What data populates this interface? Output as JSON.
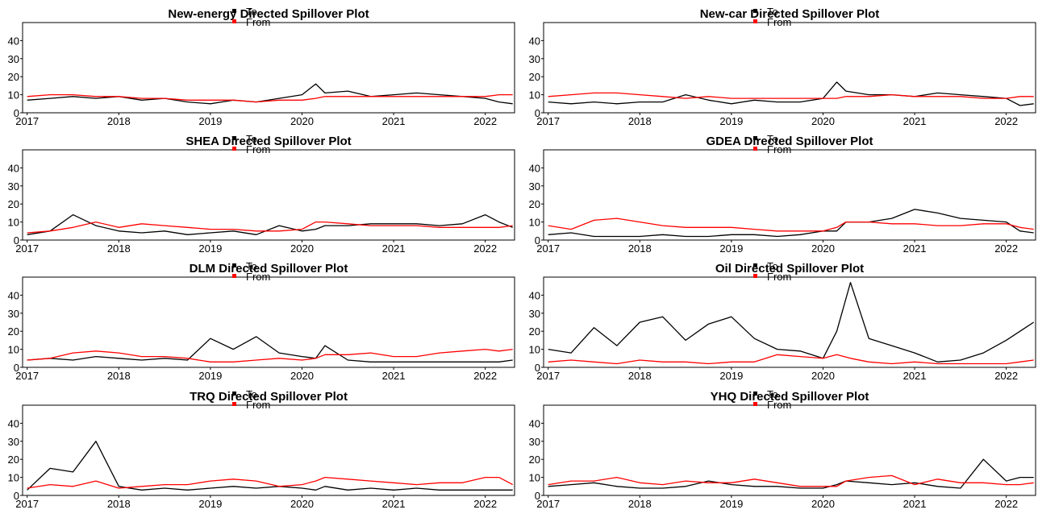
{
  "chart_data": [
    {
      "type": "line",
      "title": "New-energy Directed Spillover Plot",
      "x": [
        2017.0,
        2017.25,
        2017.5,
        2017.75,
        2018.0,
        2018.25,
        2018.5,
        2018.75,
        2019.0,
        2019.25,
        2019.5,
        2019.75,
        2020.0,
        2020.15,
        2020.25,
        2020.5,
        2020.75,
        2021.0,
        2021.25,
        2021.5,
        2021.75,
        2022.0,
        2022.15,
        2022.3
      ],
      "xticks": [
        2017,
        2018,
        2019,
        2020,
        2021,
        2022
      ],
      "yticks": [
        0,
        10,
        20,
        30,
        40
      ],
      "ylim": [
        0,
        50
      ],
      "series": [
        {
          "name": "To",
          "color": "#000000",
          "values": [
            7,
            8,
            9,
            8,
            9,
            7,
            8,
            6,
            5,
            7,
            6,
            8,
            10,
            16,
            11,
            12,
            9,
            10,
            11,
            10,
            9,
            8,
            6,
            5
          ]
        },
        {
          "name": "From",
          "color": "#ff0000",
          "values": [
            9,
            10,
            10,
            9,
            9,
            8,
            8,
            7,
            7,
            7,
            6,
            7,
            7,
            8,
            9,
            9,
            9,
            9,
            9,
            9,
            9,
            9,
            10,
            10
          ]
        }
      ]
    },
    {
      "type": "line",
      "title": "New-car Directed Spillover Plot",
      "x": [
        2017.0,
        2017.25,
        2017.5,
        2017.75,
        2018.0,
        2018.25,
        2018.5,
        2018.75,
        2019.0,
        2019.25,
        2019.5,
        2019.75,
        2020.0,
        2020.15,
        2020.25,
        2020.5,
        2020.75,
        2021.0,
        2021.25,
        2021.5,
        2021.75,
        2022.0,
        2022.15,
        2022.3
      ],
      "xticks": [
        2017,
        2018,
        2019,
        2020,
        2021,
        2022
      ],
      "yticks": [
        0,
        10,
        20,
        30,
        40
      ],
      "ylim": [
        0,
        50
      ],
      "series": [
        {
          "name": "To",
          "color": "#000000",
          "values": [
            6,
            5,
            6,
            5,
            6,
            6,
            10,
            7,
            5,
            7,
            6,
            6,
            8,
            17,
            12,
            10,
            10,
            9,
            11,
            10,
            9,
            8,
            4,
            5
          ]
        },
        {
          "name": "From",
          "color": "#ff0000",
          "values": [
            9,
            10,
            11,
            11,
            10,
            9,
            8,
            9,
            8,
            8,
            8,
            8,
            8,
            8,
            9,
            9,
            10,
            9,
            9,
            9,
            8,
            8,
            9,
            9
          ]
        }
      ]
    },
    {
      "type": "line",
      "title": "SHEA Directed Spillover Plot",
      "x": [
        2017.0,
        2017.25,
        2017.5,
        2017.75,
        2018.0,
        2018.25,
        2018.5,
        2018.75,
        2019.0,
        2019.25,
        2019.5,
        2019.75,
        2020.0,
        2020.15,
        2020.25,
        2020.5,
        2020.75,
        2021.0,
        2021.25,
        2021.5,
        2021.75,
        2022.0,
        2022.15,
        2022.3
      ],
      "xticks": [
        2017,
        2018,
        2019,
        2020,
        2021,
        2022
      ],
      "yticks": [
        0,
        10,
        20,
        30,
        40
      ],
      "ylim": [
        0,
        50
      ],
      "series": [
        {
          "name": "To",
          "color": "#000000",
          "values": [
            3,
            5,
            14,
            8,
            5,
            4,
            5,
            3,
            4,
            5,
            3,
            8,
            5,
            6,
            8,
            8,
            9,
            9,
            9,
            8,
            9,
            14,
            10,
            7
          ]
        },
        {
          "name": "From",
          "color": "#ff0000",
          "values": [
            4,
            5,
            7,
            10,
            7,
            9,
            8,
            7,
            6,
            6,
            5,
            5,
            6,
            10,
            10,
            9,
            8,
            8,
            8,
            7,
            7,
            7,
            7,
            8
          ]
        }
      ]
    },
    {
      "type": "line",
      "title": "GDEA Directed Spillover Plot",
      "x": [
        2017.0,
        2017.25,
        2017.5,
        2017.75,
        2018.0,
        2018.25,
        2018.5,
        2018.75,
        2019.0,
        2019.25,
        2019.5,
        2019.75,
        2020.0,
        2020.15,
        2020.25,
        2020.5,
        2020.75,
        2021.0,
        2021.25,
        2021.5,
        2021.75,
        2022.0,
        2022.15,
        2022.3
      ],
      "xticks": [
        2017,
        2018,
        2019,
        2020,
        2021,
        2022
      ],
      "yticks": [
        0,
        10,
        20,
        30,
        40
      ],
      "ylim": [
        0,
        50
      ],
      "series": [
        {
          "name": "To",
          "color": "#000000",
          "values": [
            3,
            4,
            2,
            2,
            2,
            3,
            2,
            2,
            3,
            3,
            2,
            3,
            5,
            5,
            10,
            10,
            12,
            17,
            15,
            12,
            11,
            10,
            5,
            4
          ]
        },
        {
          "name": "From",
          "color": "#ff0000",
          "values": [
            8,
            6,
            11,
            12,
            10,
            8,
            7,
            7,
            7,
            6,
            5,
            5,
            5,
            7,
            10,
            10,
            9,
            9,
            8,
            8,
            9,
            9,
            7,
            6
          ]
        }
      ]
    },
    {
      "type": "line",
      "title": "DLM Directed Spillover Plot",
      "x": [
        2017.0,
        2017.25,
        2017.5,
        2017.75,
        2018.0,
        2018.25,
        2018.5,
        2018.75,
        2019.0,
        2019.25,
        2019.5,
        2019.75,
        2020.0,
        2020.15,
        2020.25,
        2020.5,
        2020.75,
        2021.0,
        2021.25,
        2021.5,
        2021.75,
        2022.0,
        2022.15,
        2022.3
      ],
      "xticks": [
        2017,
        2018,
        2019,
        2020,
        2021,
        2022
      ],
      "yticks": [
        0,
        10,
        20,
        30,
        40
      ],
      "ylim": [
        0,
        50
      ],
      "series": [
        {
          "name": "To",
          "color": "#000000",
          "values": [
            4,
            5,
            4,
            6,
            5,
            4,
            5,
            4,
            16,
            10,
            17,
            8,
            6,
            5,
            12,
            4,
            3,
            3,
            3,
            3,
            3,
            3,
            3,
            4
          ]
        },
        {
          "name": "From",
          "color": "#ff0000",
          "values": [
            4,
            5,
            8,
            9,
            8,
            6,
            6,
            5,
            3,
            3,
            4,
            5,
            4,
            5,
            7,
            7,
            8,
            6,
            6,
            8,
            9,
            10,
            9,
            10
          ]
        }
      ]
    },
    {
      "type": "line",
      "title": "Oil Directed Spillover Plot",
      "x": [
        2017.0,
        2017.25,
        2017.5,
        2017.75,
        2018.0,
        2018.25,
        2018.5,
        2018.75,
        2019.0,
        2019.25,
        2019.5,
        2019.75,
        2020.0,
        2020.15,
        2020.3,
        2020.5,
        2020.75,
        2021.0,
        2021.25,
        2021.5,
        2021.75,
        2022.0,
        2022.15,
        2022.3
      ],
      "xticks": [
        2017,
        2018,
        2019,
        2020,
        2021,
        2022
      ],
      "yticks": [
        0,
        10,
        20,
        30,
        40
      ],
      "ylim": [
        0,
        50
      ],
      "series": [
        {
          "name": "To",
          "color": "#000000",
          "values": [
            10,
            8,
            22,
            12,
            25,
            28,
            15,
            24,
            28,
            16,
            10,
            9,
            5,
            20,
            47,
            16,
            12,
            8,
            3,
            4,
            8,
            15,
            20,
            25
          ]
        },
        {
          "name": "From",
          "color": "#ff0000",
          "values": [
            3,
            4,
            3,
            2,
            4,
            3,
            3,
            2,
            3,
            3,
            7,
            6,
            5,
            7,
            5,
            3,
            2,
            3,
            2,
            2,
            2,
            2,
            3,
            4
          ]
        }
      ]
    },
    {
      "type": "line",
      "title": "TRQ Directed Spillover Plot",
      "x": [
        2017.0,
        2017.25,
        2017.5,
        2017.75,
        2018.0,
        2018.25,
        2018.5,
        2018.75,
        2019.0,
        2019.25,
        2019.5,
        2019.75,
        2020.0,
        2020.15,
        2020.25,
        2020.5,
        2020.75,
        2021.0,
        2021.25,
        2021.5,
        2021.75,
        2022.0,
        2022.15,
        2022.3
      ],
      "xticks": [
        2017,
        2018,
        2019,
        2020,
        2021,
        2022
      ],
      "yticks": [
        0,
        10,
        20,
        30,
        40
      ],
      "ylim": [
        0,
        50
      ],
      "series": [
        {
          "name": "To",
          "color": "#000000",
          "values": [
            3,
            15,
            13,
            30,
            5,
            3,
            4,
            3,
            4,
            5,
            4,
            5,
            4,
            3,
            5,
            3,
            4,
            3,
            4,
            3,
            3,
            3,
            3,
            3
          ]
        },
        {
          "name": "From",
          "color": "#ff0000",
          "values": [
            4,
            6,
            5,
            8,
            4,
            5,
            6,
            6,
            8,
            9,
            8,
            5,
            6,
            8,
            10,
            9,
            8,
            7,
            6,
            7,
            7,
            10,
            10,
            6
          ]
        }
      ]
    },
    {
      "type": "line",
      "title": "YHQ Directed Spillover Plot",
      "x": [
        2017.0,
        2017.25,
        2017.5,
        2017.75,
        2018.0,
        2018.25,
        2018.5,
        2018.75,
        2019.0,
        2019.25,
        2019.5,
        2019.75,
        2020.0,
        2020.15,
        2020.25,
        2020.5,
        2020.75,
        2021.0,
        2021.25,
        2021.5,
        2021.75,
        2022.0,
        2022.15,
        2022.3
      ],
      "xticks": [
        2017,
        2018,
        2019,
        2020,
        2021,
        2022
      ],
      "yticks": [
        0,
        10,
        20,
        30,
        40
      ],
      "ylim": [
        0,
        50
      ],
      "series": [
        {
          "name": "To",
          "color": "#000000",
          "values": [
            5,
            6,
            7,
            5,
            4,
            4,
            5,
            8,
            6,
            5,
            5,
            4,
            4,
            6,
            8,
            7,
            6,
            7,
            5,
            4,
            20,
            8,
            10,
            10
          ]
        },
        {
          "name": "From",
          "color": "#ff0000",
          "values": [
            6,
            8,
            8,
            10,
            7,
            6,
            8,
            7,
            7,
            9,
            7,
            5,
            5,
            5,
            8,
            10,
            11,
            6,
            9,
            7,
            7,
            6,
            6,
            7
          ]
        }
      ]
    }
  ]
}
